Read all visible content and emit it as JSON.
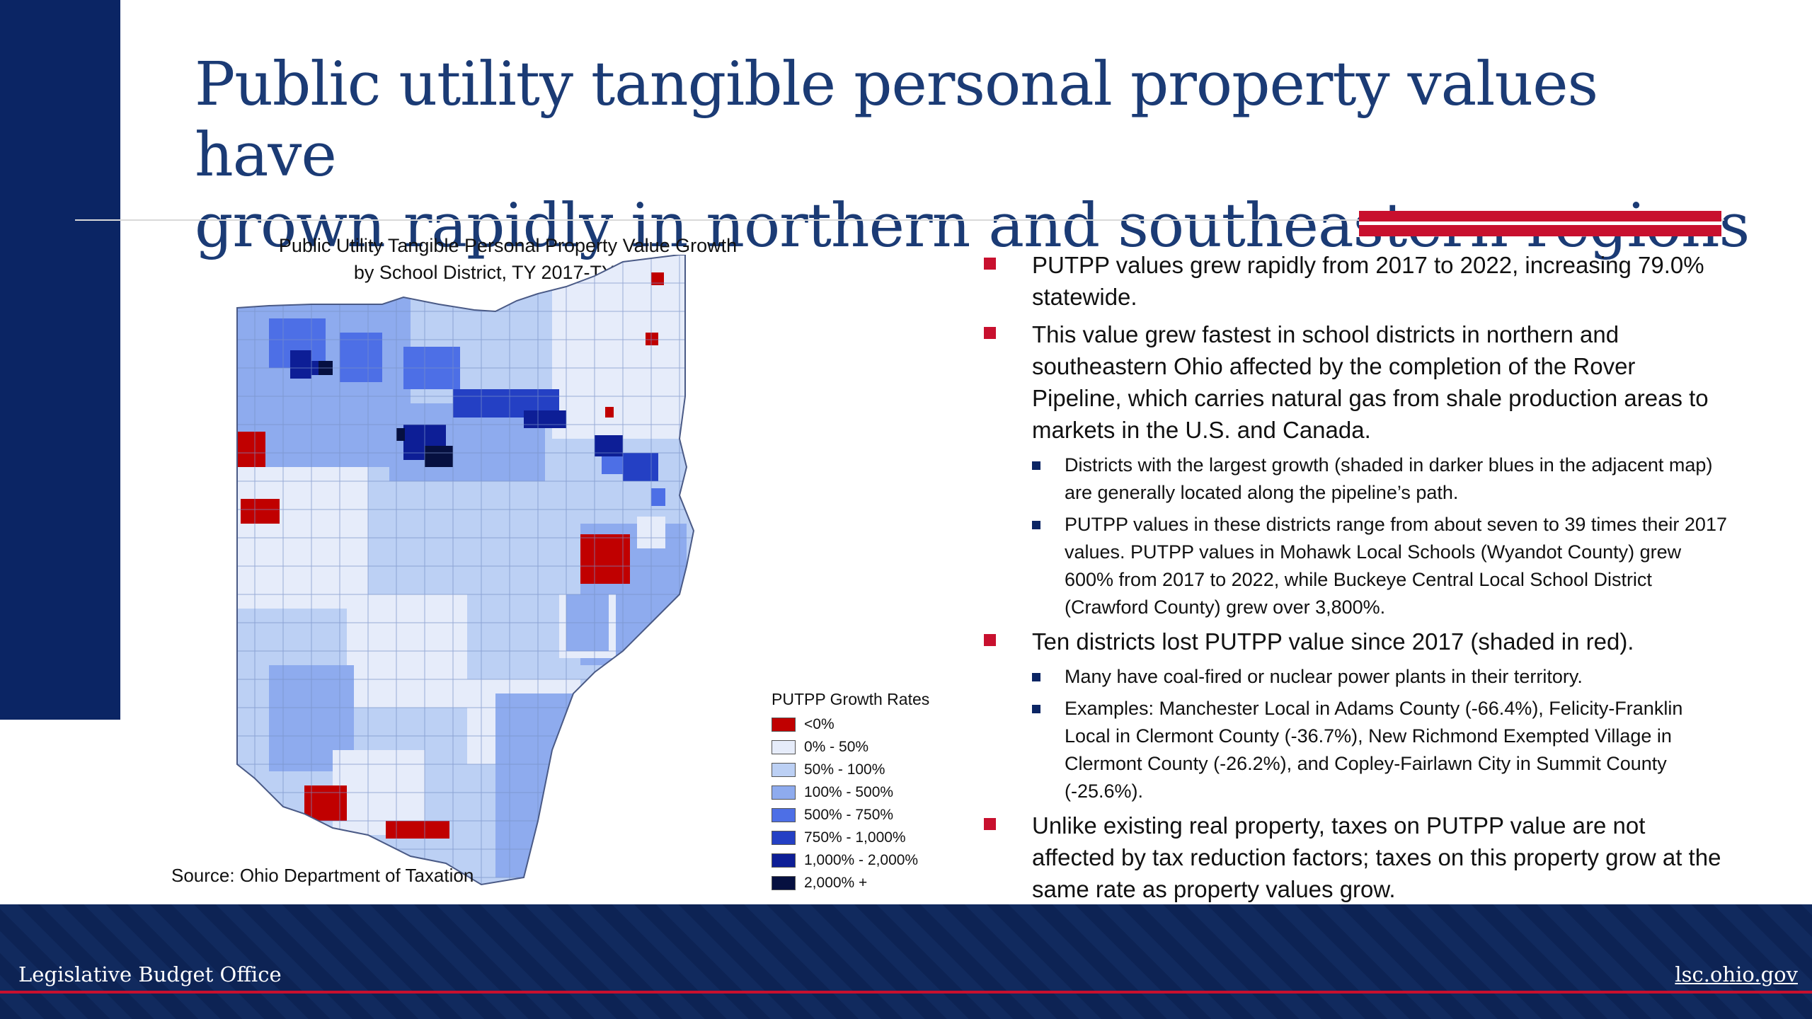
{
  "slide": {
    "title_line1": "Public utility tangible personal property values have",
    "title_line2": "grown rapidly in northern and southeastern regions"
  },
  "map": {
    "title_line1": "Public Utility Tangible Personal Property Value Growth",
    "title_line2": "by School District, TY 2017-TY 2022",
    "source": "Source: Ohio Department of Taxation",
    "legend_title": "PUTPP Growth Rates",
    "legend": [
      {
        "label": "<0%",
        "color": "#c00000"
      },
      {
        "label": "0% - 50%",
        "color": "#e6ecfa"
      },
      {
        "label": "50% - 100%",
        "color": "#bcd0f4"
      },
      {
        "label": "100% - 500%",
        "color": "#8eabee"
      },
      {
        "label": "500% - 750%",
        "color": "#4d6fe6"
      },
      {
        "label": "750% - 1,000%",
        "color": "#2440c4"
      },
      {
        "label": "1,000% - 2,000%",
        "color": "#0d1e96"
      },
      {
        "label": "2,000% +",
        "color": "#061040"
      }
    ]
  },
  "bullets": {
    "b1": "PUTPP values grew rapidly from 2017 to 2022, increasing 79.0% statewide.",
    "b2": "This value grew fastest in school districts in northern and southeastern Ohio affected by the completion of the Rover Pipeline, which carries natural gas from shale production areas to markets in the U.S. and Canada.",
    "b2a": "Districts with the largest growth (shaded in darker blues in the adjacent map) are generally located along the pipeline’s path.",
    "b2b": "PUTPP values in these districts range from about seven to 39 times their 2017 values. PUTPP values in Mohawk Local Schools (Wyandot County) grew 600% from 2017 to 2022, while Buckeye Central Local School District (Crawford County) grew over 3,800%.",
    "b3": "Ten districts lost PUTPP value since 2017 (shaded in red).",
    "b3a": "Many have coal-fired or nuclear power plants in their territory.",
    "b3b": "Examples: Manchester Local in Adams County (-66.4%), Felicity-Franklin Local in Clermont County (-36.7%), New Richmond Exempted Village in Clermont County (-26.2%), and Copley-Fairlawn City in Summit County (-25.6%).",
    "b4": "Unlike existing real property, taxes on PUTPP value are not affected by tax reduction factors; taxes on this property grow at the same rate as property values grow."
  },
  "footer": {
    "left": "Legislative Budget Office",
    "right": "lsc.ohio.gov"
  },
  "colors": {
    "navy": "#0b2564",
    "title_blue": "#1b3b75",
    "accent_red": "#c8102e"
  }
}
